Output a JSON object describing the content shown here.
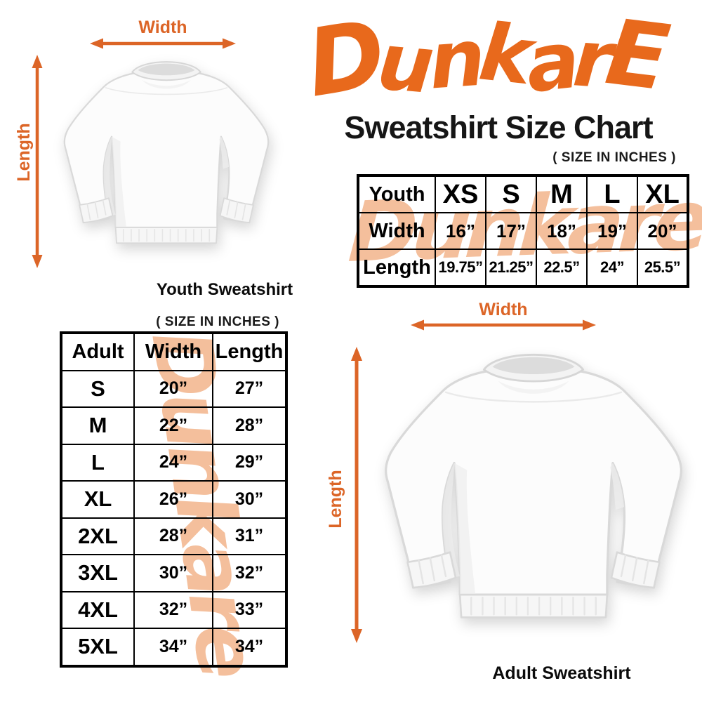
{
  "colors": {
    "logo_orange": "#E8691C",
    "arrow_orange": "#DC6527",
    "watermark_peach": "#F4BF9C",
    "text_black": "#161616"
  },
  "logo": {
    "text": "DunkarE"
  },
  "watermark": {
    "text": "Dunkare"
  },
  "header": {
    "title": "Sweatshirt Size Chart",
    "size_note": "( SIZE IN INCHES )"
  },
  "youth_section": {
    "width_label": "Width",
    "length_label": "Length",
    "caption": "Youth Sweatshirt",
    "table": {
      "header": [
        "Youth",
        "XS",
        "S",
        "M",
        "L",
        "XL"
      ],
      "rows": [
        {
          "label": "Width",
          "values": [
            "16”",
            "17”",
            "18”",
            "19”",
            "20”"
          ]
        },
        {
          "label": "Length",
          "values": [
            "19.75”",
            "21.25”",
            "22.5”",
            "24”",
            "25.5”"
          ]
        }
      ]
    }
  },
  "adult_section": {
    "size_note": "( SIZE IN INCHES )",
    "width_label": "Width",
    "length_label": "Length",
    "caption": "Adult Sweatshirt",
    "table": {
      "header": [
        "Adult",
        "Width",
        "Length"
      ],
      "rows": [
        {
          "size": "S",
          "width": "20”",
          "length": "27”"
        },
        {
          "size": "M",
          "width": "22”",
          "length": "28”"
        },
        {
          "size": "L",
          "width": "24”",
          "length": "29”"
        },
        {
          "size": "XL",
          "width": "26”",
          "length": "30”"
        },
        {
          "size": "2XL",
          "width": "28”",
          "length": "31”"
        },
        {
          "size": "3XL",
          "width": "30”",
          "length": "32”"
        },
        {
          "size": "4XL",
          "width": "32”",
          "length": "33”"
        },
        {
          "size": "5XL",
          "width": "34”",
          "length": "34”"
        }
      ]
    }
  }
}
